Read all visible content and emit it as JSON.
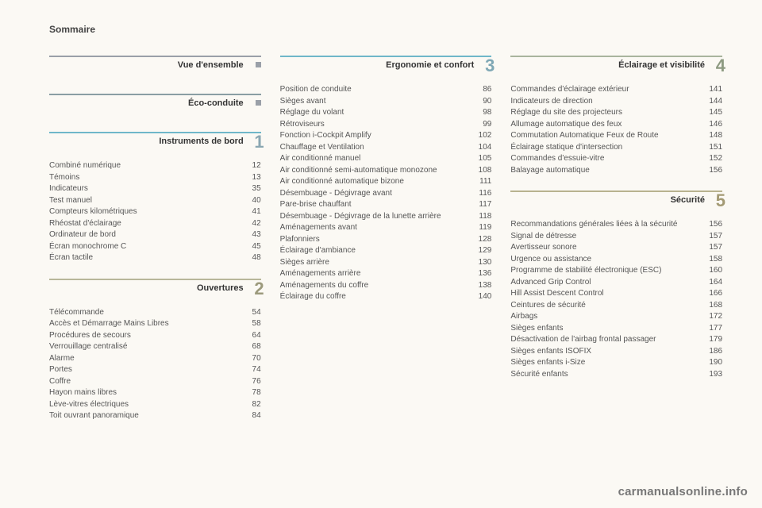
{
  "page_title": "Sommaire",
  "watermark": "carmanualsonline.info",
  "colors": {
    "vue": "#9aa0a8",
    "eco": "#8a9ea3",
    "instruments": "#6fb7c9",
    "ouvertures": "#b8b79a",
    "ergonomie": "#6fb7c9",
    "eclairage": "#a9b49d",
    "securite": "#b8b28f",
    "num_instruments": "#8aa7b2",
    "num_ouvertures": "#9c9a7c",
    "num_ergonomie": "#7fa8b5",
    "num_eclairage": "#8e9b82",
    "num_securite": "#a39a74",
    "marker": "#9aa0a8"
  },
  "columns": [
    {
      "sections": [
        {
          "id": "vue",
          "title": "Vue d'ensemble",
          "marker": true,
          "rule_color_key": "vue"
        },
        {
          "id": "eco",
          "title": "Éco-conduite",
          "marker": true,
          "rule_color_key": "eco"
        },
        {
          "id": "instruments",
          "title": "Instruments de bord",
          "number": "1",
          "number_color_key": "num_instruments",
          "rule_color_key": "instruments",
          "entries": [
            {
              "label": "Combiné numérique",
              "page": "12"
            },
            {
              "label": "Témoins",
              "page": "13"
            },
            {
              "label": "Indicateurs",
              "page": "35"
            },
            {
              "label": "Test manuel",
              "page": "40"
            },
            {
              "label": "Compteurs kilométriques",
              "page": "41"
            },
            {
              "label": "Rhéostat d'éclairage",
              "page": "42"
            },
            {
              "label": "Ordinateur de bord",
              "page": "43"
            },
            {
              "label": "Écran monochrome C",
              "page": "45"
            },
            {
              "label": "Écran tactile",
              "page": "48"
            }
          ]
        },
        {
          "id": "ouvertures",
          "title": "Ouvertures",
          "number": "2",
          "number_color_key": "num_ouvertures",
          "rule_color_key": "ouvertures",
          "entries": [
            {
              "label": "Télécommande",
              "page": "54"
            },
            {
              "label": "Accès et Démarrage Mains Libres",
              "page": "58"
            },
            {
              "label": "Procédures de secours",
              "page": "64"
            },
            {
              "label": "Verrouillage centralisé",
              "page": "68"
            },
            {
              "label": "Alarme",
              "page": "70"
            },
            {
              "label": "Portes",
              "page": "74"
            },
            {
              "label": "Coffre",
              "page": "76"
            },
            {
              "label": "Hayon mains libres",
              "page": "78"
            },
            {
              "label": "Lève-vitres électriques",
              "page": "82"
            },
            {
              "label": "Toit ouvrant panoramique",
              "page": "84"
            }
          ]
        }
      ]
    },
    {
      "sections": [
        {
          "id": "ergonomie",
          "title": "Ergonomie et confort",
          "number": "3",
          "number_color_key": "num_ergonomie",
          "rule_color_key": "ergonomie",
          "entries": [
            {
              "label": "Position de conduite",
              "page": "86"
            },
            {
              "label": "Sièges avant",
              "page": "90"
            },
            {
              "label": "Réglage du volant",
              "page": "98"
            },
            {
              "label": "Rétroviseurs",
              "page": "99"
            },
            {
              "label": "Fonction i-Cockpit Amplify",
              "page": "102"
            },
            {
              "label": "Chauffage et Ventilation",
              "page": "104"
            },
            {
              "label": "Air conditionné manuel",
              "page": "105"
            },
            {
              "label": "Air conditionné semi-automatique monozone",
              "page": "108",
              "indent_after": true
            },
            {
              "label": "Air conditionné automatique bizone",
              "page": "111"
            },
            {
              "label": "Désembuage - Dégivrage avant",
              "page": "116"
            },
            {
              "label": "Pare-brise chauffant",
              "page": "117"
            },
            {
              "label": "Désembuage - Dégivrage de la lunette arrière",
              "page": "118",
              "indent_after": true
            },
            {
              "label": "Aménagements avant",
              "page": "119"
            },
            {
              "label": "Plafonniers",
              "page": "128"
            },
            {
              "label": "Éclairage d'ambiance",
              "page": "129"
            },
            {
              "label": "Sièges arrière",
              "page": "130"
            },
            {
              "label": "Aménagements arrière",
              "page": "136"
            },
            {
              "label": "Aménagements du coffre",
              "page": "138"
            },
            {
              "label": "Éclairage du coffre",
              "page": "140"
            }
          ]
        }
      ]
    },
    {
      "sections": [
        {
          "id": "eclairage",
          "title": "Éclairage et visibilité",
          "number": "4",
          "number_color_key": "num_eclairage",
          "rule_color_key": "eclairage",
          "entries": [
            {
              "label": "Commandes d'éclairage extérieur",
              "page": "141"
            },
            {
              "label": "Indicateurs de direction",
              "page": "144"
            },
            {
              "label": "Réglage du site des projecteurs",
              "page": "145"
            },
            {
              "label": "Allumage automatique des feux",
              "page": "146"
            },
            {
              "label": "Commutation Automatique Feux de Route",
              "page": "148",
              "indent_after": true
            },
            {
              "label": "Éclairage statique d'intersection",
              "page": "151"
            },
            {
              "label": "Commandes d'essuie-vitre",
              "page": "152"
            },
            {
              "label": "Balayage automatique",
              "page": "156"
            }
          ]
        },
        {
          "id": "securite",
          "title": "Sécurité",
          "number": "5",
          "number_color_key": "num_securite",
          "rule_color_key": "securite",
          "entries": [
            {
              "label": "Recommandations générales liées à la sécurité",
              "page": "156",
              "indent_after": true
            },
            {
              "label": "Signal de détresse",
              "page": "157"
            },
            {
              "label": "Avertisseur sonore",
              "page": "157"
            },
            {
              "label": "Urgence ou assistance",
              "page": "158"
            },
            {
              "label": "Programme de stabilité électronique (ESC)",
              "page": "160",
              "indent_after": true
            },
            {
              "label": "Advanced Grip Control",
              "page": "164"
            },
            {
              "label": "Hill Assist Descent Control",
              "page": "166"
            },
            {
              "label": "Ceintures de sécurité",
              "page": "168"
            },
            {
              "label": "Airbags",
              "page": "172"
            },
            {
              "label": "Sièges enfants",
              "page": "177"
            },
            {
              "label": "Désactivation de l'airbag frontal passager",
              "page": "179",
              "indent_after": true
            },
            {
              "label": "Sièges enfants ISOFIX",
              "page": "186"
            },
            {
              "label": "Sièges enfants i-Size",
              "page": "190"
            },
            {
              "label": "Sécurité enfants",
              "page": "193"
            }
          ]
        }
      ]
    }
  ]
}
